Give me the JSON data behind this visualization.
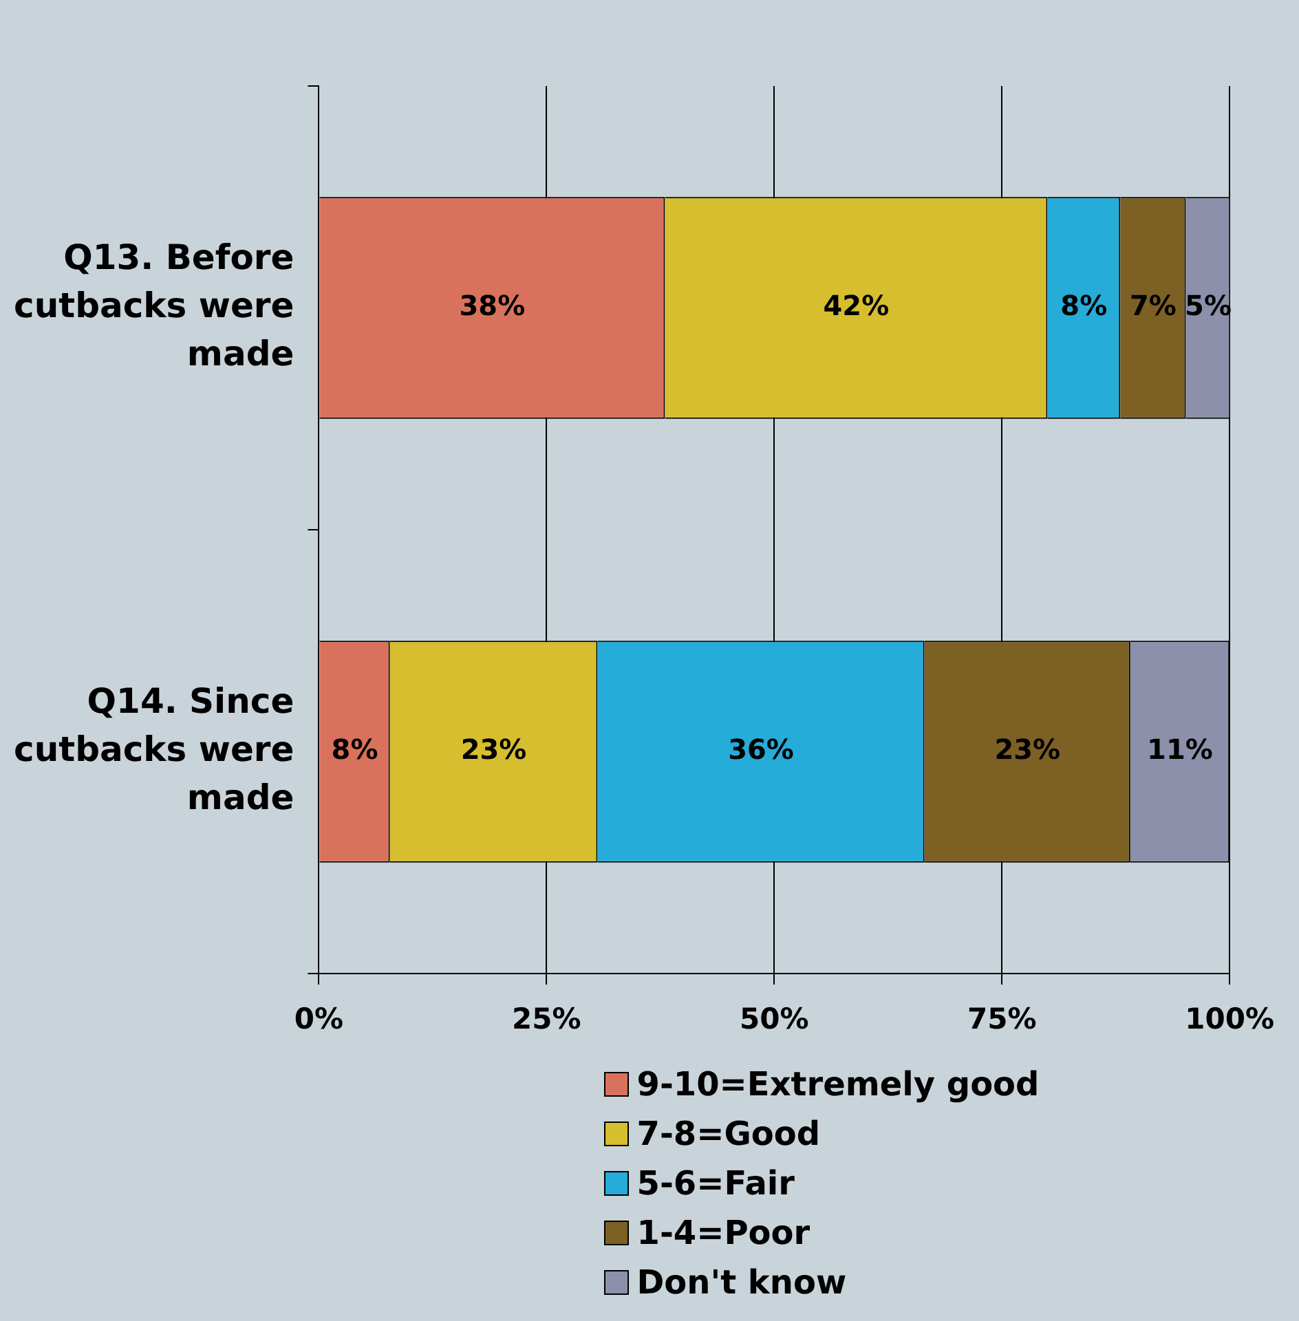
{
  "chart_data": {
    "type": "bar",
    "orientation": "horizontal",
    "stacked": true,
    "categories": [
      "Q13. Before cutbacks were made",
      "Q14. Since cutbacks were made"
    ],
    "series": [
      {
        "name": "9-10=Extremely good",
        "color": "#d9725c",
        "values": [
          38,
          7.8
        ],
        "value_labels": [
          "38%",
          "8%"
        ]
      },
      {
        "name": "7-8=Good",
        "color": "#d6be2e",
        "values": [
          42,
          22.8
        ],
        "value_labels": [
          "42%",
          "23%"
        ]
      },
      {
        "name": "5-6=Fair",
        "color": "#25acd8",
        "values": [
          8,
          35.9
        ],
        "value_labels": [
          "8%",
          "36%"
        ]
      },
      {
        "name": "1-4=Poor",
        "color": "#7c6024",
        "values": [
          7.2,
          22.6
        ],
        "value_labels": [
          "7%",
          "23%"
        ]
      },
      {
        "name": "Don't know",
        "color": "#8c90aa",
        "values": [
          4.9,
          10.9
        ],
        "value_labels": [
          "5%",
          "11%"
        ]
      }
    ],
    "xlim": [
      0,
      100
    ],
    "xticks": [
      {
        "value": 0,
        "label": "0%"
      },
      {
        "value": 25,
        "label": "25%"
      },
      {
        "value": 50,
        "label": "50%"
      },
      {
        "value": 75,
        "label": "75%"
      },
      {
        "value": 100,
        "label": "100%"
      }
    ],
    "grid": "x",
    "legend": "bottom"
  }
}
